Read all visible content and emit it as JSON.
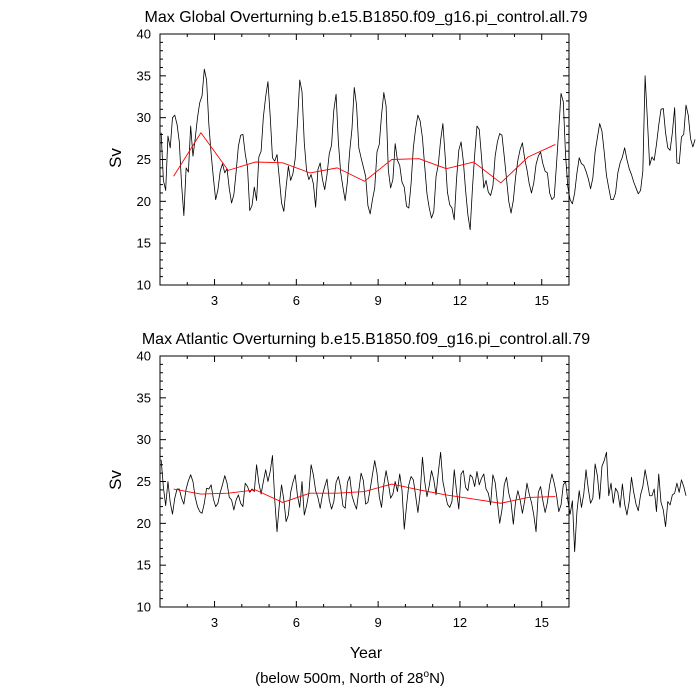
{
  "footnote": {
    "prefix": "(below 500m, North of 28",
    "degree": "o",
    "suffix": "N)"
  },
  "chart_data": [
    {
      "type": "line",
      "title": "Max Global Overturning b.e15.B1850.f09_g16.pi_control.all.79",
      "xlabel": "",
      "ylabel": "Sv",
      "xlim": [
        1,
        16
      ],
      "ylim": [
        10,
        40
      ],
      "xticks": [
        3,
        6,
        9,
        12,
        15
      ],
      "yticks": [
        10,
        15,
        20,
        25,
        30,
        35,
        40
      ],
      "grid": false,
      "series": [
        {
          "color": "#000000",
          "x_start": 1.0417,
          "x_step": 0.08333,
          "values": [
            28.2,
            22.5,
            21.3,
            27.8,
            26.4,
            30.0,
            30.3,
            29.2,
            27.1,
            22.0,
            18.3,
            24.0,
            23.5,
            29.0,
            25.4,
            27.5,
            30.0,
            31.8,
            32.6,
            35.8,
            34.5,
            29.2,
            25.7,
            22.8,
            20.2,
            21.4,
            23.6,
            24.5,
            23.4,
            23.9,
            21.5,
            19.8,
            20.8,
            23.5,
            26.6,
            27.9,
            28.0,
            25.7,
            24.1,
            18.9,
            19.5,
            21.7,
            20.1,
            25.3,
            26.0,
            30.1,
            32.5,
            34.3,
            30.2,
            25.2,
            24.8,
            25.6,
            22.8,
            19.8,
            18.8,
            21.7,
            24.2,
            22.5,
            23.3,
            25.1,
            29.4,
            34.5,
            33.1,
            27.0,
            23.7,
            22.6,
            23.2,
            22.1,
            19.3,
            23.8,
            24.6,
            22.6,
            21.4,
            23.2,
            25.7,
            26.7,
            30.9,
            32.8,
            27.1,
            23.5,
            21.7,
            20.1,
            22.4,
            26.0,
            28.7,
            33.6,
            31.5,
            26.4,
            25.2,
            24.1,
            23.0,
            19.5,
            18.5,
            20.2,
            21.6,
            25.9,
            26.8,
            30.3,
            33.0,
            31.4,
            23.7,
            21.6,
            22.6,
            26.9,
            24.9,
            24.3,
            22.3,
            21.7,
            19.4,
            19.2,
            22.1,
            26.4,
            28.7,
            30.3,
            29.6,
            27.6,
            24.2,
            20.9,
            19.2,
            18.0,
            18.8,
            23.0,
            24.4,
            27.3,
            29.3,
            25.4,
            21.1,
            19.6,
            19.2,
            17.8,
            22.6,
            26.1,
            27.1,
            24.8,
            21.3,
            18.4,
            16.6,
            21.5,
            25.6,
            29.0,
            28.6,
            25.3,
            21.6,
            22.5,
            21.1,
            20.7,
            21.8,
            25.4,
            27.1,
            28.1,
            27.9,
            25.4,
            22.7,
            20.0,
            18.6,
            20.1,
            22.9,
            24.9,
            26.2,
            27.0,
            25.1,
            23.8,
            22.1,
            21.0,
            22.2,
            24.4,
            25.4,
            25.9,
            24.5,
            23.6,
            23.4,
            21.0,
            20.2,
            20.5,
            24.4,
            28.6,
            32.9,
            31.9,
            25.5,
            21.7,
            20.2,
            19.7,
            21.0,
            23.4,
            25.2,
            24.5,
            24.3,
            23.6,
            22.7,
            21.5,
            22.8,
            25.9,
            27.6,
            29.3,
            28.4,
            25.9,
            23.1,
            21.6,
            20.2,
            20.2,
            21.0,
            23.4,
            24.6,
            25.3,
            26.4,
            25.0,
            23.9,
            23.2,
            22.3,
            21.6,
            20.9,
            21.3,
            23.6,
            35.0,
            29.8,
            24.3,
            25.3,
            24.9,
            26.8,
            29.1,
            31.0,
            31.1,
            28.2,
            26.4,
            26.1,
            28.2,
            31.2,
            24.6,
            24.5,
            27.7,
            28.0,
            31.5,
            30.3,
            27.5,
            26.5,
            27.4
          ]
        },
        {
          "color": "#ff0000",
          "x": [
            1.5,
            2.5,
            3.5,
            4.5,
            5.5,
            6.5,
            7.5,
            8.5,
            9.5,
            10.5,
            11.5,
            12.5,
            13.5,
            14.5,
            15.5
          ],
          "values": [
            23.0,
            28.2,
            23.7,
            24.7,
            24.6,
            23.4,
            24.0,
            22.4,
            25.0,
            25.1,
            23.9,
            24.7,
            22.2,
            25.3,
            26.8
          ]
        }
      ]
    },
    {
      "type": "line",
      "title": "Max Atlantic Overturning b.e15.B1850.f09_g16.pi_control.all.79",
      "xlabel": "Year",
      "ylabel": "Sv",
      "xlim": [
        1,
        16
      ],
      "ylim": [
        10,
        40
      ],
      "xticks": [
        3,
        6,
        9,
        12,
        15
      ],
      "yticks": [
        10,
        15,
        20,
        25,
        30,
        35,
        40
      ],
      "grid": false,
      "series": [
        {
          "color": "#000000",
          "x_start": 1.0417,
          "x_step": 0.08333,
          "values": [
            27.6,
            24.3,
            22.1,
            25.0,
            22.5,
            21.1,
            23.0,
            24.1,
            24.1,
            23.0,
            22.3,
            24.1,
            25.1,
            25.8,
            25.0,
            23.1,
            22.0,
            21.4,
            21.2,
            22.4,
            24.2,
            24.1,
            24.6,
            22.9,
            22.0,
            22.4,
            23.7,
            24.6,
            25.7,
            24.8,
            23.1,
            22.8,
            21.6,
            22.8,
            23.4,
            22.4,
            22.0,
            24.8,
            24.4,
            23.7,
            24.1,
            23.8,
            27.0,
            24.8,
            23.5,
            25.0,
            26.4,
            25.0,
            26.2,
            28.1,
            22.8,
            19.0,
            22.2,
            24.6,
            22.8,
            20.2,
            21.0,
            23.7,
            24.9,
            25.8,
            23.3,
            21.9,
            25.0,
            21.0,
            22.1,
            23.6,
            27.0,
            25.8,
            23.9,
            23.1,
            21.8,
            23.4,
            24.4,
            25.3,
            22.8,
            21.7,
            22.6,
            24.9,
            25.6,
            24.3,
            22.1,
            21.8,
            24.9,
            25.6,
            23.3,
            22.4,
            21.7,
            23.9,
            26.0,
            25.1,
            22.3,
            22.5,
            24.1,
            25.8,
            27.5,
            26.0,
            23.2,
            21.9,
            24.6,
            26.3,
            24.8,
            23.0,
            23.5,
            25.0,
            23.8,
            25.9,
            24.0,
            19.3,
            22.1,
            24.6,
            25.6,
            25.2,
            23.3,
            21.3,
            23.6,
            27.9,
            25.0,
            23.2,
            24.5,
            26.3,
            25.2,
            23.4,
            26.1,
            28.5,
            25.0,
            23.6,
            22.3,
            21.9,
            22.6,
            26.4,
            23.9,
            21.7,
            25.9,
            26.3,
            24.3,
            23.9,
            25.8,
            25.5,
            24.4,
            26.2,
            24.6,
            25.4,
            25.9,
            24.1,
            23.6,
            22.2,
            25.8,
            24.9,
            22.5,
            20.0,
            21.6,
            24.6,
            25.5,
            23.6,
            22.5,
            19.9,
            22.6,
            23.9,
            22.8,
            21.2,
            22.7,
            24.8,
            23.5,
            22.5,
            21.0,
            19.0,
            23.7,
            24.4,
            22.7,
            21.3,
            22.5,
            24.6,
            25.9,
            24.8,
            23.4,
            21.4,
            22.2,
            24.6,
            25.0,
            22.7,
            21.1,
            22.7,
            16.6,
            21.4,
            23.9,
            21.9,
            23.5,
            26.4,
            24.1,
            22.4,
            23.0,
            27.1,
            25.7,
            22.9,
            26.8,
            27.5,
            28.5,
            23.3,
            24.8,
            22.4,
            24.2,
            23.7,
            21.9,
            24.7,
            22.3,
            21.0,
            22.6,
            25.5,
            23.7,
            22.3,
            21.5,
            23.4,
            24.4,
            26.4,
            24.9,
            23.3,
            23.3,
            24.1,
            21.4,
            25.9,
            22.5,
            21.6,
            19.6,
            22.6,
            22.2,
            23.4,
            23.6,
            24.8,
            23.7,
            25.2,
            24.4,
            23.3
          ]
        },
        {
          "color": "#ff0000",
          "x": [
            1.5,
            2.5,
            3.5,
            4.5,
            5.5,
            6.5,
            7.5,
            8.5,
            9.5,
            10.5,
            11.5,
            12.5,
            13.5,
            14.5,
            15.5
          ],
          "values": [
            24.1,
            23.5,
            23.6,
            24.0,
            22.5,
            23.6,
            23.6,
            23.8,
            24.7,
            24.0,
            23.4,
            22.9,
            22.4,
            23.1,
            23.2
          ]
        }
      ]
    }
  ]
}
